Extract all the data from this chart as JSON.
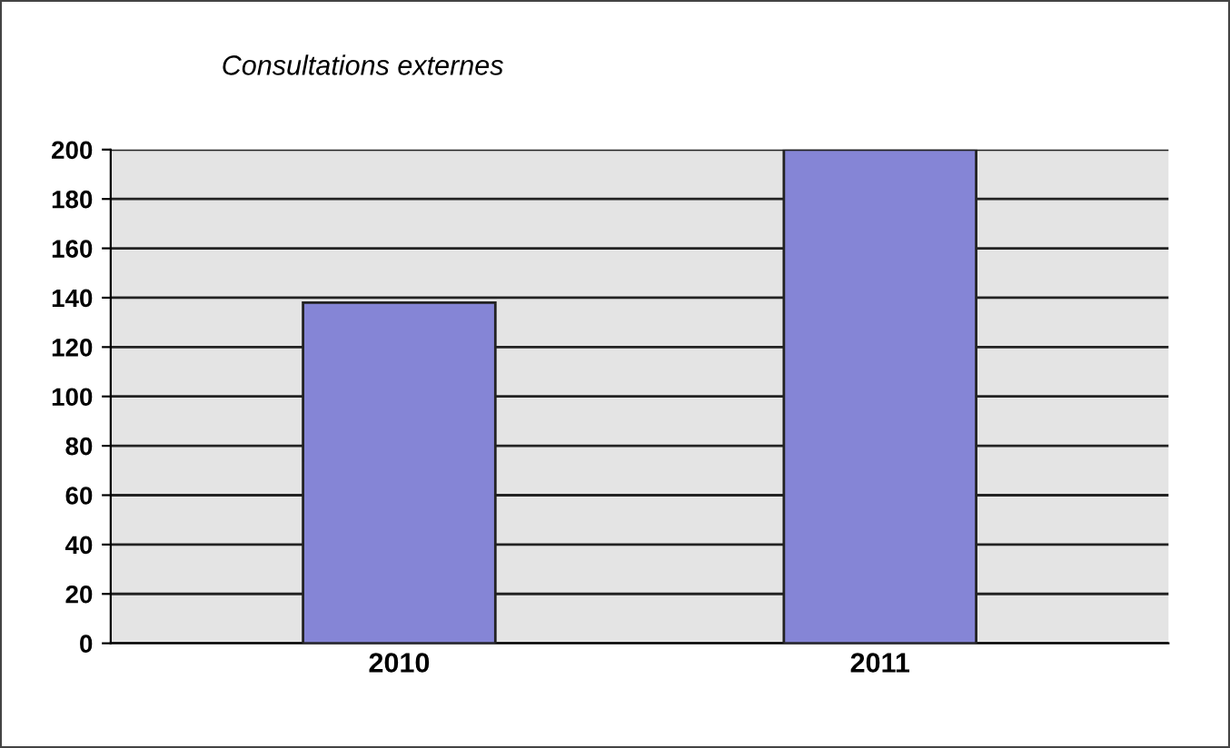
{
  "chart_data": {
    "type": "bar",
    "title": "Consultations externes",
    "categories": [
      "2010",
      "2011"
    ],
    "values": [
      138,
      200
    ],
    "color": "#8585d6",
    "ylim": [
      0,
      200
    ],
    "yticks": [
      0,
      20,
      40,
      60,
      80,
      100,
      120,
      140,
      160,
      180,
      200
    ],
    "grid": "y"
  }
}
